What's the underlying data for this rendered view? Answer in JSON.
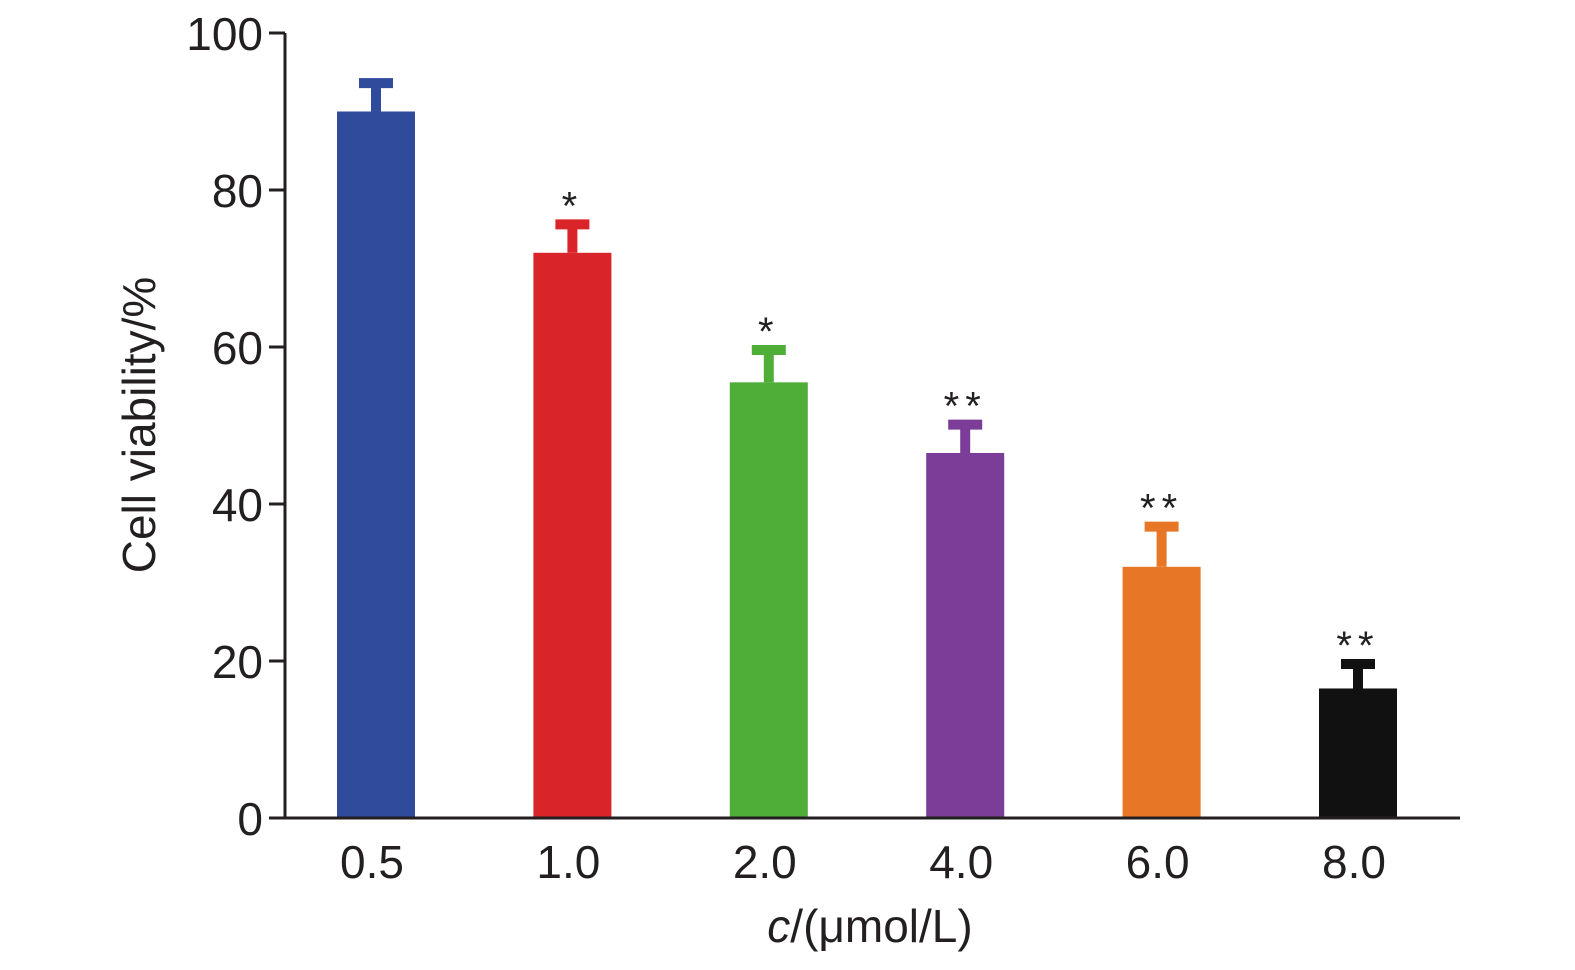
{
  "chart_data": {
    "type": "bar",
    "categories": [
      "0.5",
      "1.0",
      "2.0",
      "4.0",
      "6.0",
      "8.0"
    ],
    "values": [
      90,
      72,
      55.5,
      46.5,
      32,
      16.5
    ],
    "error_upper": [
      94,
      76,
      60,
      50.5,
      37.5,
      20
    ],
    "significance": [
      "",
      "*",
      "*",
      "**",
      "**",
      "**"
    ],
    "bar_colors": [
      "#304a9c",
      "#d92429",
      "#4fae38",
      "#7b3d98",
      "#e77627",
      "#111111"
    ],
    "ylabel": "Cell viability/%",
    "xlabel_italic": "c",
    "xlabel_rest": "/(μmol/L)",
    "ylim": [
      0,
      100
    ],
    "yticks": [
      0,
      20,
      40,
      60,
      80,
      100
    ],
    "grid": false
  }
}
